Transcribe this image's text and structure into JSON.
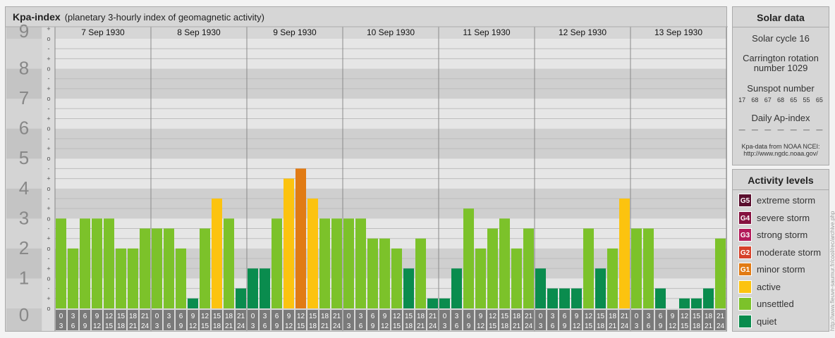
{
  "header": {
    "title": "Kpa-index",
    "subtitle": "(planetary 3-hourly index of geomagnetic activity)"
  },
  "chart_data": {
    "type": "bar",
    "title": "Kpa-index",
    "subtitle": "(planetary 3-hourly index of geomagnetic activity)",
    "ylim": [
      0,
      9
    ],
    "y_ticks": [
      "0",
      "1",
      "2",
      "3",
      "4",
      "5",
      "6",
      "7",
      "8",
      "9"
    ],
    "sub_ticks": [
      "-",
      "o",
      "+"
    ],
    "days": [
      "7 Sep 1930",
      "8 Sep 1930",
      "9 Sep 1930",
      "10 Sep 1930",
      "11 Sep 1930",
      "12 Sep 1930",
      "13 Sep 1930"
    ],
    "interval_top": [
      "0",
      "3",
      "6",
      "9",
      "12",
      "15",
      "18",
      "21"
    ],
    "interval_bottom": [
      "3",
      "6",
      "9",
      "12",
      "15",
      "18",
      "21",
      "24"
    ],
    "values": [
      [
        3,
        2,
        3,
        3,
        3,
        2,
        2,
        2.667
      ],
      [
        2.667,
        2.667,
        2,
        0.333,
        2.667,
        3.667,
        3,
        0.667
      ],
      [
        1.333,
        1.333,
        3,
        4.333,
        4.667,
        3.667,
        3,
        3
      ],
      [
        3,
        3,
        2.333,
        2.333,
        2,
        1.333,
        2.333,
        0.333
      ],
      [
        0.333,
        1.333,
        3.333,
        2,
        2.667,
        3,
        2,
        2.667
      ],
      [
        1.333,
        0.667,
        0.667,
        0.667,
        2.667,
        1.333,
        2,
        3.667
      ],
      [
        2.667,
        2.667,
        0.667,
        0,
        0.333,
        0.333,
        0.667,
        2.333
      ]
    ],
    "levels": [
      {
        "label": "quiet",
        "color": "#0a8c4e"
      },
      {
        "label": "unsettled",
        "color": "#7cc22a"
      },
      {
        "label": "active",
        "color": "#fcc30f"
      },
      {
        "label": "minor storm",
        "color": "#e17b14"
      }
    ]
  },
  "solar": {
    "heading": "Solar data",
    "cycle": "Solar cycle 16",
    "carrington": "Carrington rotation number 1029",
    "sunspot_label": "Sunspot number",
    "sunspots": [
      "17",
      "68",
      "67",
      "68",
      "65",
      "55",
      "65"
    ],
    "ap_label": "Daily Ap-index",
    "ap_values": [
      "—",
      "—",
      "—",
      "—",
      "—",
      "—",
      "—"
    ],
    "source1": "Kpa-data from NOAA NCEI:",
    "source2": "http://www.ngdc.noaa.gov/"
  },
  "activity": {
    "heading": "Activity levels",
    "items": [
      {
        "code": "G5",
        "label": "extreme storm",
        "color": "#5a0f2e"
      },
      {
        "code": "G4",
        "label": "severe storm",
        "color": "#85113f"
      },
      {
        "code": "G3",
        "label": "strong storm",
        "color": "#b31a5a"
      },
      {
        "code": "G2",
        "label": "moderate storm",
        "color": "#d6412a"
      },
      {
        "code": "G1",
        "label": "minor storm",
        "color": "#e17b14"
      },
      {
        "code": "",
        "label": "active",
        "color": "#fcc30f"
      },
      {
        "code": "",
        "label": "unsettled",
        "color": "#7cc22a"
      },
      {
        "code": "",
        "label": "quiet",
        "color": "#0a8c4e"
      }
    ]
  },
  "watermark": "http://www.fleuve-saumur.fr/cool/rec/archive.php"
}
